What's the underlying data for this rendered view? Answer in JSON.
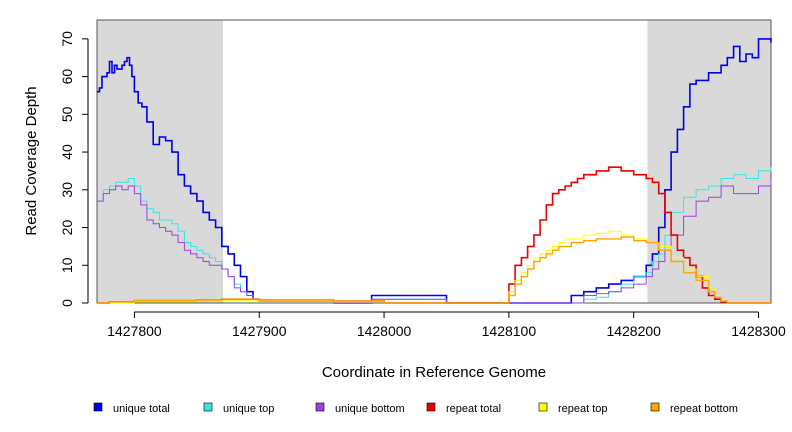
{
  "chart_data": {
    "type": "line",
    "title": "",
    "xlabel": "Coordinate in Reference Genome",
    "ylabel": "Read Coverage Depth",
    "xlim": [
      1427770,
      1428310
    ],
    "ylim": [
      0,
      75
    ],
    "xticks": [
      1427800,
      1427900,
      1428000,
      1428100,
      1428200,
      1428300
    ],
    "yticks": [
      0,
      10,
      20,
      30,
      40,
      50,
      60,
      70
    ],
    "grid": false,
    "legend_position": "bottom",
    "shaded_regions": [
      {
        "x": [
          1427770,
          1427871
        ],
        "color": "#d9d9d9"
      },
      {
        "x": [
          1428211,
          1428310
        ],
        "color": "#d9d9d9"
      }
    ],
    "series": [
      {
        "name": "unique total",
        "color": "#0000ee",
        "width": 1.6,
        "x": [
          1427770,
          1427772,
          1427774,
          1427776,
          1427778,
          1427780,
          1427782,
          1427784,
          1427786,
          1427788,
          1427790,
          1427792,
          1427794,
          1427796,
          1427798,
          1427800,
          1427803,
          1427806,
          1427810,
          1427815,
          1427820,
          1427825,
          1427830,
          1427835,
          1427840,
          1427845,
          1427850,
          1427855,
          1427860,
          1427865,
          1427870,
          1427875,
          1427880,
          1427885,
          1427890,
          1427895,
          1427900,
          1427960,
          1427990,
          1428050,
          1428100,
          1428150,
          1428160,
          1428170,
          1428180,
          1428190,
          1428200,
          1428210,
          1428215,
          1428220,
          1428225,
          1428230,
          1428235,
          1428240,
          1428245,
          1428250,
          1428260,
          1428270,
          1428275,
          1428280,
          1428285,
          1428290,
          1428295,
          1428300,
          1428305,
          1428310
        ],
        "y": [
          56,
          57,
          60,
          60,
          61,
          64,
          61,
          63,
          62,
          62,
          63,
          64,
          65,
          63,
          60,
          56,
          53,
          52,
          48,
          42,
          44,
          43,
          40,
          34,
          31,
          29,
          27,
          24,
          22,
          20,
          15,
          13,
          10,
          7,
          3,
          1,
          0.5,
          0,
          2,
          0,
          0,
          2,
          3,
          4,
          5,
          6,
          7,
          10,
          13,
          20,
          30,
          40,
          46,
          52,
          58,
          59,
          61,
          63,
          65,
          68,
          64,
          66,
          65,
          70,
          70,
          69
        ]
      },
      {
        "name": "unique top",
        "color": "#33e6e6",
        "width": 1,
        "x": [
          1427770,
          1427775,
          1427780,
          1427785,
          1427790,
          1427795,
          1427800,
          1427805,
          1427810,
          1427815,
          1427820,
          1427825,
          1427830,
          1427835,
          1427840,
          1427845,
          1427850,
          1427855,
          1427860,
          1427865,
          1427870,
          1427875,
          1427880,
          1427885,
          1427890,
          1427895,
          1427900,
          1427960,
          1427990,
          1428050,
          1428100,
          1428160,
          1428170,
          1428180,
          1428190,
          1428200,
          1428210,
          1428215,
          1428220,
          1428225,
          1428230,
          1428240,
          1428250,
          1428260,
          1428270,
          1428280,
          1428290,
          1428300,
          1428310
        ],
        "y": [
          27,
          30,
          31,
          32,
          32,
          33,
          31,
          27,
          25,
          24,
          22,
          22,
          21,
          19,
          16,
          15,
          14,
          13,
          12,
          11,
          9,
          7,
          5,
          3,
          2,
          1,
          0.5,
          0,
          1,
          0,
          0,
          1,
          1.5,
          3,
          5,
          7,
          8,
          11,
          13,
          18,
          24,
          28,
          30,
          31,
          33,
          34,
          33,
          35,
          36
        ]
      },
      {
        "name": "unique bottom",
        "color": "#a040e0",
        "width": 1,
        "x": [
          1427770,
          1427775,
          1427780,
          1427785,
          1427790,
          1427795,
          1427800,
          1427805,
          1427810,
          1427815,
          1427820,
          1427825,
          1427830,
          1427835,
          1427840,
          1427845,
          1427850,
          1427855,
          1427860,
          1427865,
          1427870,
          1427875,
          1427880,
          1427885,
          1427890,
          1427895,
          1427900,
          1427960,
          1427990,
          1428050,
          1428100,
          1428160,
          1428170,
          1428180,
          1428190,
          1428200,
          1428210,
          1428215,
          1428220,
          1428225,
          1428230,
          1428240,
          1428250,
          1428260,
          1428270,
          1428280,
          1428290,
          1428300,
          1428310
        ],
        "y": [
          27,
          29,
          30,
          31,
          30,
          31,
          29,
          26,
          22,
          21,
          20,
          19,
          18,
          16,
          14,
          13,
          12,
          11,
          10,
          10,
          9,
          7,
          4,
          3,
          2,
          1,
          0.5,
          0,
          1,
          0,
          0,
          2,
          2.5,
          3,
          4,
          5,
          7,
          9,
          11,
          14,
          18,
          23,
          27,
          28,
          31,
          29,
          29,
          31,
          33
        ]
      },
      {
        "name": "repeat total",
        "color": "#ee0000",
        "width": 1.6,
        "x": [
          1427770,
          1427780,
          1427800,
          1427850,
          1427870,
          1427900,
          1427960,
          1428000,
          1428050,
          1428098,
          1428100,
          1428105,
          1428110,
          1428115,
          1428120,
          1428125,
          1428130,
          1428135,
          1428140,
          1428145,
          1428150,
          1428155,
          1428160,
          1428170,
          1428180,
          1428190,
          1428200,
          1428210,
          1428215,
          1428220,
          1428225,
          1428230,
          1428235,
          1428240,
          1428245,
          1428250,
          1428255,
          1428260,
          1428265,
          1428270,
          1428275,
          1428280,
          1428310
        ],
        "y": [
          0,
          0.3,
          0.6,
          0.8,
          1,
          0.8,
          0.5,
          0,
          0,
          0,
          5,
          10,
          12,
          15,
          18,
          22,
          26,
          29,
          30,
          31,
          32,
          33,
          34,
          35,
          36,
          35,
          34,
          33,
          32,
          29,
          24,
          18,
          14,
          12,
          10,
          7,
          4,
          2,
          1,
          0.3,
          0,
          0,
          0
        ]
      },
      {
        "name": "repeat top",
        "color": "#ffff00",
        "width": 1,
        "x": [
          1427770,
          1427800,
          1427850,
          1427870,
          1427900,
          1427960,
          1428000,
          1428098,
          1428100,
          1428105,
          1428110,
          1428115,
          1428120,
          1428125,
          1428130,
          1428135,
          1428140,
          1428145,
          1428150,
          1428160,
          1428170,
          1428180,
          1428190,
          1428200,
          1428210,
          1428220,
          1428230,
          1428240,
          1428250,
          1428260,
          1428265,
          1428270,
          1428275,
          1428310
        ],
        "y": [
          0,
          0.3,
          0.5,
          0.6,
          0.5,
          0.3,
          0,
          0,
          3,
          6,
          8,
          10,
          12,
          13,
          14,
          15,
          16,
          17,
          17,
          18,
          18.5,
          19,
          18,
          17,
          16,
          15,
          12,
          9,
          7,
          4,
          2,
          0.5,
          0,
          0
        ]
      },
      {
        "name": "repeat bottom",
        "color": "#ffa500",
        "width": 1.4,
        "x": [
          1427770,
          1427780,
          1427800,
          1427850,
          1427870,
          1427900,
          1427960,
          1428000,
          1428098,
          1428100,
          1428105,
          1428110,
          1428115,
          1428120,
          1428125,
          1428130,
          1428135,
          1428140,
          1428150,
          1428160,
          1428170,
          1428180,
          1428190,
          1428200,
          1428210,
          1428220,
          1428230,
          1428240,
          1428250,
          1428260,
          1428265,
          1428270,
          1428275,
          1428310
        ],
        "y": [
          0,
          0.3,
          0.6,
          0.8,
          1,
          0.8,
          0.5,
          0,
          0,
          2,
          5,
          7,
          9,
          11,
          12,
          13,
          14,
          15,
          16,
          16.5,
          17,
          17,
          17.5,
          16.5,
          16,
          14,
          11,
          8,
          6,
          3,
          1.5,
          0.5,
          0,
          0
        ]
      }
    ]
  }
}
